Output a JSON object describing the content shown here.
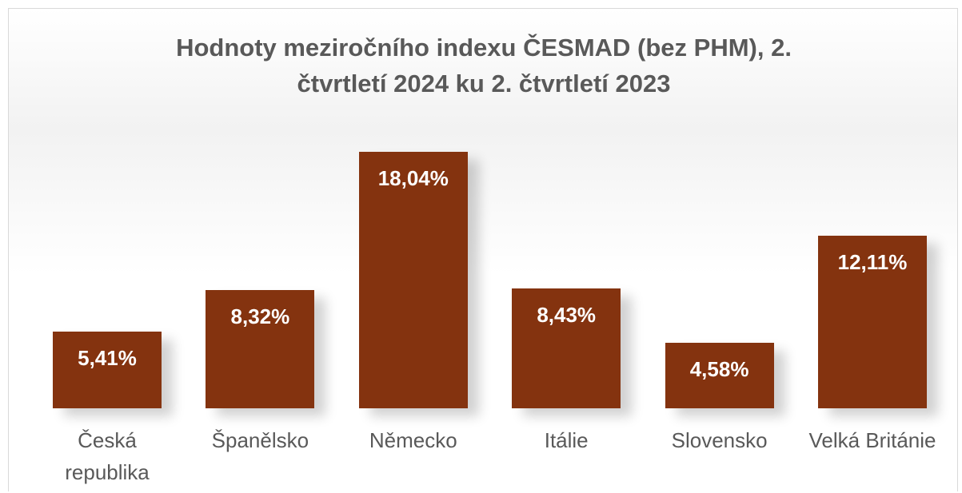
{
  "chart_data": {
    "type": "bar",
    "title": "Hodnoty meziročního indexu ČESMAD (bez PHM), 2. čtvrtletí 2024 ku 2. čtvrtletí 2023",
    "categories": [
      "Česká republika",
      "Španělsko",
      "Německo",
      "Itálie",
      "Slovensko",
      "Velká Británie"
    ],
    "values": [
      5.41,
      8.32,
      18.04,
      8.43,
      4.58,
      12.11
    ],
    "value_labels": [
      "5,41%",
      "8,32%",
      "18,04%",
      "8,43%",
      "4,58%",
      "12,11%"
    ],
    "color": "#84330f"
  }
}
